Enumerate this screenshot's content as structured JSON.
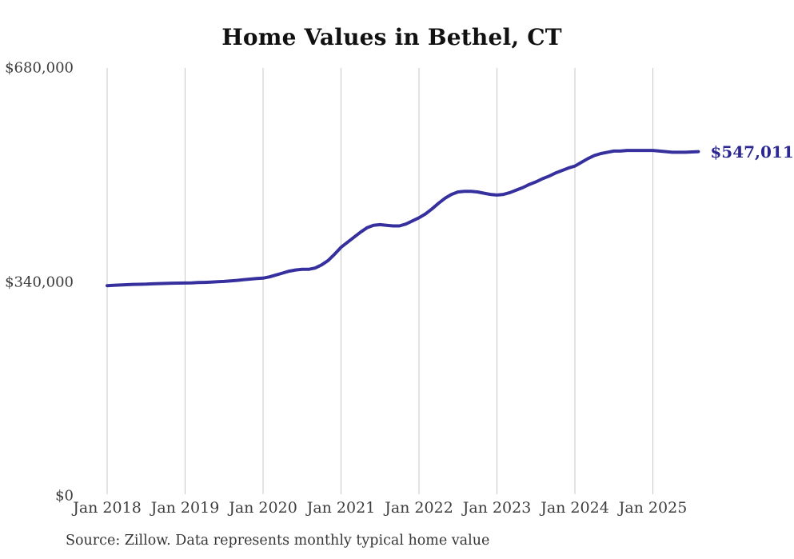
{
  "chart_data": {
    "type": "line",
    "title": "Home Values in Bethel, CT",
    "source_note": "Source: Zillow. Data represents monthly typical home value",
    "series_name": "Monthly typical home value",
    "start_month": "Jan 2018",
    "end_month": "Aug 2025",
    "end_label": "$547,011",
    "final_value": 547011,
    "ylim": [
      0,
      680000
    ],
    "grid": "vertical-only",
    "legend": "none",
    "line_color": "#36309f",
    "end_label_color": "#2b2791",
    "gridline_color": "#c9c9c9",
    "y_ticks": [
      {
        "label": "$0",
        "value": 0
      },
      {
        "label": "$340,000",
        "value": 340000
      },
      {
        "label": "$680,000",
        "value": 680000
      }
    ],
    "x_ticks": [
      {
        "label": "Jan 2018",
        "month_index": 0
      },
      {
        "label": "Jan 2019",
        "month_index": 12
      },
      {
        "label": "Jan 2020",
        "month_index": 24
      },
      {
        "label": "Jan 2021",
        "month_index": 36
      },
      {
        "label": "Jan 2022",
        "month_index": 48
      },
      {
        "label": "Jan 2023",
        "month_index": 60
      },
      {
        "label": "Jan 2024",
        "month_index": 72
      },
      {
        "label": "Jan 2025",
        "month_index": 84
      }
    ],
    "monthly_values": [
      334000,
      334500,
      335000,
      335500,
      336000,
      336200,
      336500,
      337000,
      337300,
      337600,
      338000,
      338100,
      338200,
      338500,
      339000,
      339300,
      339800,
      340200,
      340800,
      341500,
      342400,
      343400,
      344500,
      345500,
      346000,
      348000,
      351000,
      354000,
      357000,
      359000,
      360000,
      360000,
      362000,
      367000,
      374000,
      384000,
      395000,
      403000,
      411000,
      419000,
      426000,
      430000,
      431000,
      430000,
      429000,
      429000,
      432000,
      437000,
      442000,
      448000,
      456000,
      465000,
      473000,
      479000,
      483000,
      484000,
      484000,
      483000,
      481000,
      479000,
      478000,
      479000,
      482000,
      486000,
      490000,
      495000,
      499000,
      504000,
      508000,
      513000,
      517000,
      521000,
      524000,
      530000,
      536000,
      541000,
      544000,
      546000,
      548000,
      548000,
      549000,
      549000,
      549000,
      549000,
      549000,
      548000,
      547000,
      546000,
      546000,
      546000,
      546500,
      547011
    ]
  }
}
